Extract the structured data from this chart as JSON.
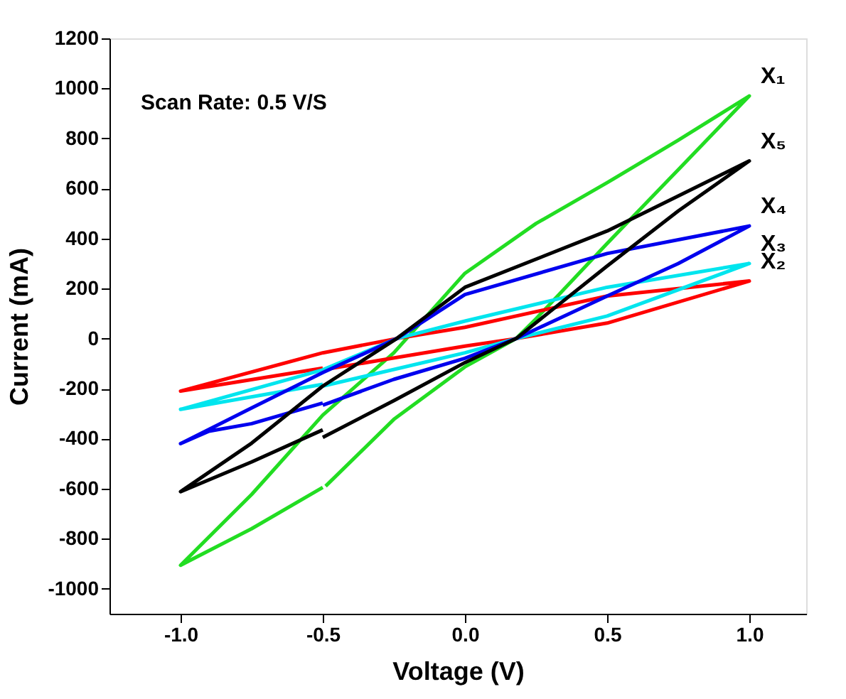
{
  "chart_data": {
    "type": "line",
    "xlabel": "Voltage (V)",
    "ylabel": "Current (mA)",
    "annotations": [
      "Scan Rate: 0.5 V/S"
    ],
    "xlim": [
      -1.25,
      1.2
    ],
    "ylim": [
      -1100,
      1200
    ],
    "xticks": [
      {
        "value": -1,
        "label": "-1.0"
      },
      {
        "value": -0.5,
        "label": "-0.5"
      },
      {
        "value": 0,
        "label": "0.0"
      },
      {
        "value": 0.5,
        "label": "0.5"
      },
      {
        "value": 1,
        "label": "1.0"
      }
    ],
    "yticks": [
      -1000,
      -800,
      -600,
      -400,
      -200,
      0,
      200,
      400,
      600,
      800,
      1000,
      1200
    ],
    "grid": false,
    "legend": false,
    "marker": "none",
    "line_style": "solid",
    "series": [
      {
        "name": "X₁",
        "color": "#22dd22",
        "x": [
          -0.49,
          -0.25,
          0,
          0.18,
          0.25,
          0.5,
          0.75,
          1,
          0.75,
          0.5,
          0.25,
          0,
          -0.25,
          -0.5,
          -0.75,
          -1,
          -0.75,
          -0.5
        ],
        "values": [
          -590,
          -323,
          -113,
          0,
          79,
          380,
          675,
          970,
          793,
          623,
          460,
          261,
          -57,
          -306,
          -623,
          -906,
          -760,
          -595
        ]
      },
      {
        "name": "X₂",
        "color": "#ff0000",
        "x": [
          -0.5,
          0,
          0.18,
          0.5,
          1,
          0.5,
          0,
          -0.24,
          -0.5,
          -1,
          -0.5
        ],
        "values": [
          -125,
          -30,
          0,
          62,
          230,
          170,
          45,
          0,
          -57,
          -210,
          -118
        ]
      },
      {
        "name": "X₃",
        "color": "#00e5ee",
        "x": [
          -0.5,
          0,
          0.18,
          0.5,
          1,
          0.5,
          0,
          -0.24,
          -0.5,
          -1,
          -0.5
        ],
        "values": [
          -190,
          -57,
          0,
          90,
          300,
          205,
          70,
          0,
          -125,
          -283,
          -183
        ]
      },
      {
        "name": "X₄",
        "color": "#0000ee",
        "x": [
          -0.5,
          -0.25,
          0,
          0.18,
          0.5,
          0.75,
          1,
          0.5,
          0,
          -0.24,
          -0.5,
          -0.75,
          -1,
          -0.9,
          -0.75,
          -0.5
        ],
        "values": [
          -266,
          -163,
          -79,
          0,
          170,
          300,
          450,
          340,
          176,
          0,
          -136,
          -277,
          -420,
          -370,
          -340,
          -258
        ]
      },
      {
        "name": "X₅",
        "color": "#000000",
        "x": [
          -0.5,
          -0.25,
          0,
          0.18,
          0.5,
          0.75,
          1,
          0.5,
          0,
          -0.24,
          -0.5,
          -0.75,
          -1,
          -0.75,
          -0.5
        ],
        "values": [
          -395,
          -248,
          -96,
          0,
          290,
          510,
          710,
          430,
          205,
          0,
          -190,
          -418,
          -612,
          -493,
          -365
        ]
      }
    ]
  }
}
